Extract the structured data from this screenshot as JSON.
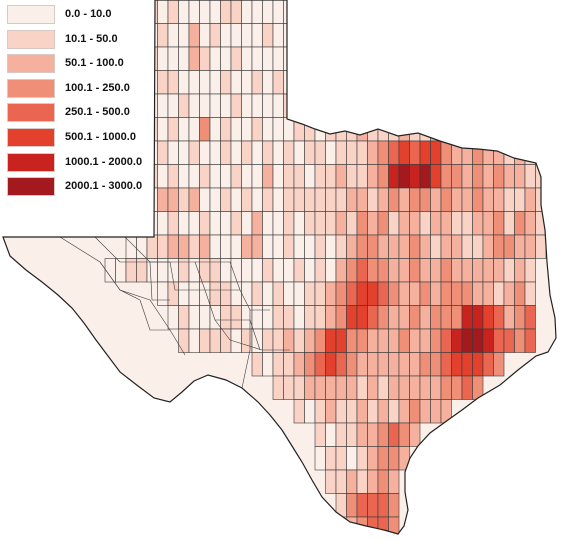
{
  "legend": {
    "classes": [
      {
        "label": "0.0 - 10.0",
        "color": "#faefe9"
      },
      {
        "label": "10.1 - 50.0",
        "color": "#f9d3c6"
      },
      {
        "label": "50.1 - 100.0",
        "color": "#f5b19e"
      },
      {
        "label": "100.1 - 250.0",
        "color": "#f08f78"
      },
      {
        "label": "250.1 - 500.0",
        "color": "#ea6650"
      },
      {
        "label": "500.1 - 1000.0",
        "color": "#e3402e"
      },
      {
        "label": "1000.1 - 2000.0",
        "color": "#c9231f"
      },
      {
        "label": "2000.1 - 3000.0",
        "color": "#a3191d"
      }
    ]
  },
  "map": {
    "region": "Texas counties",
    "stroke_color": "#3a3a3a",
    "boundary_color": "#222222"
  }
}
